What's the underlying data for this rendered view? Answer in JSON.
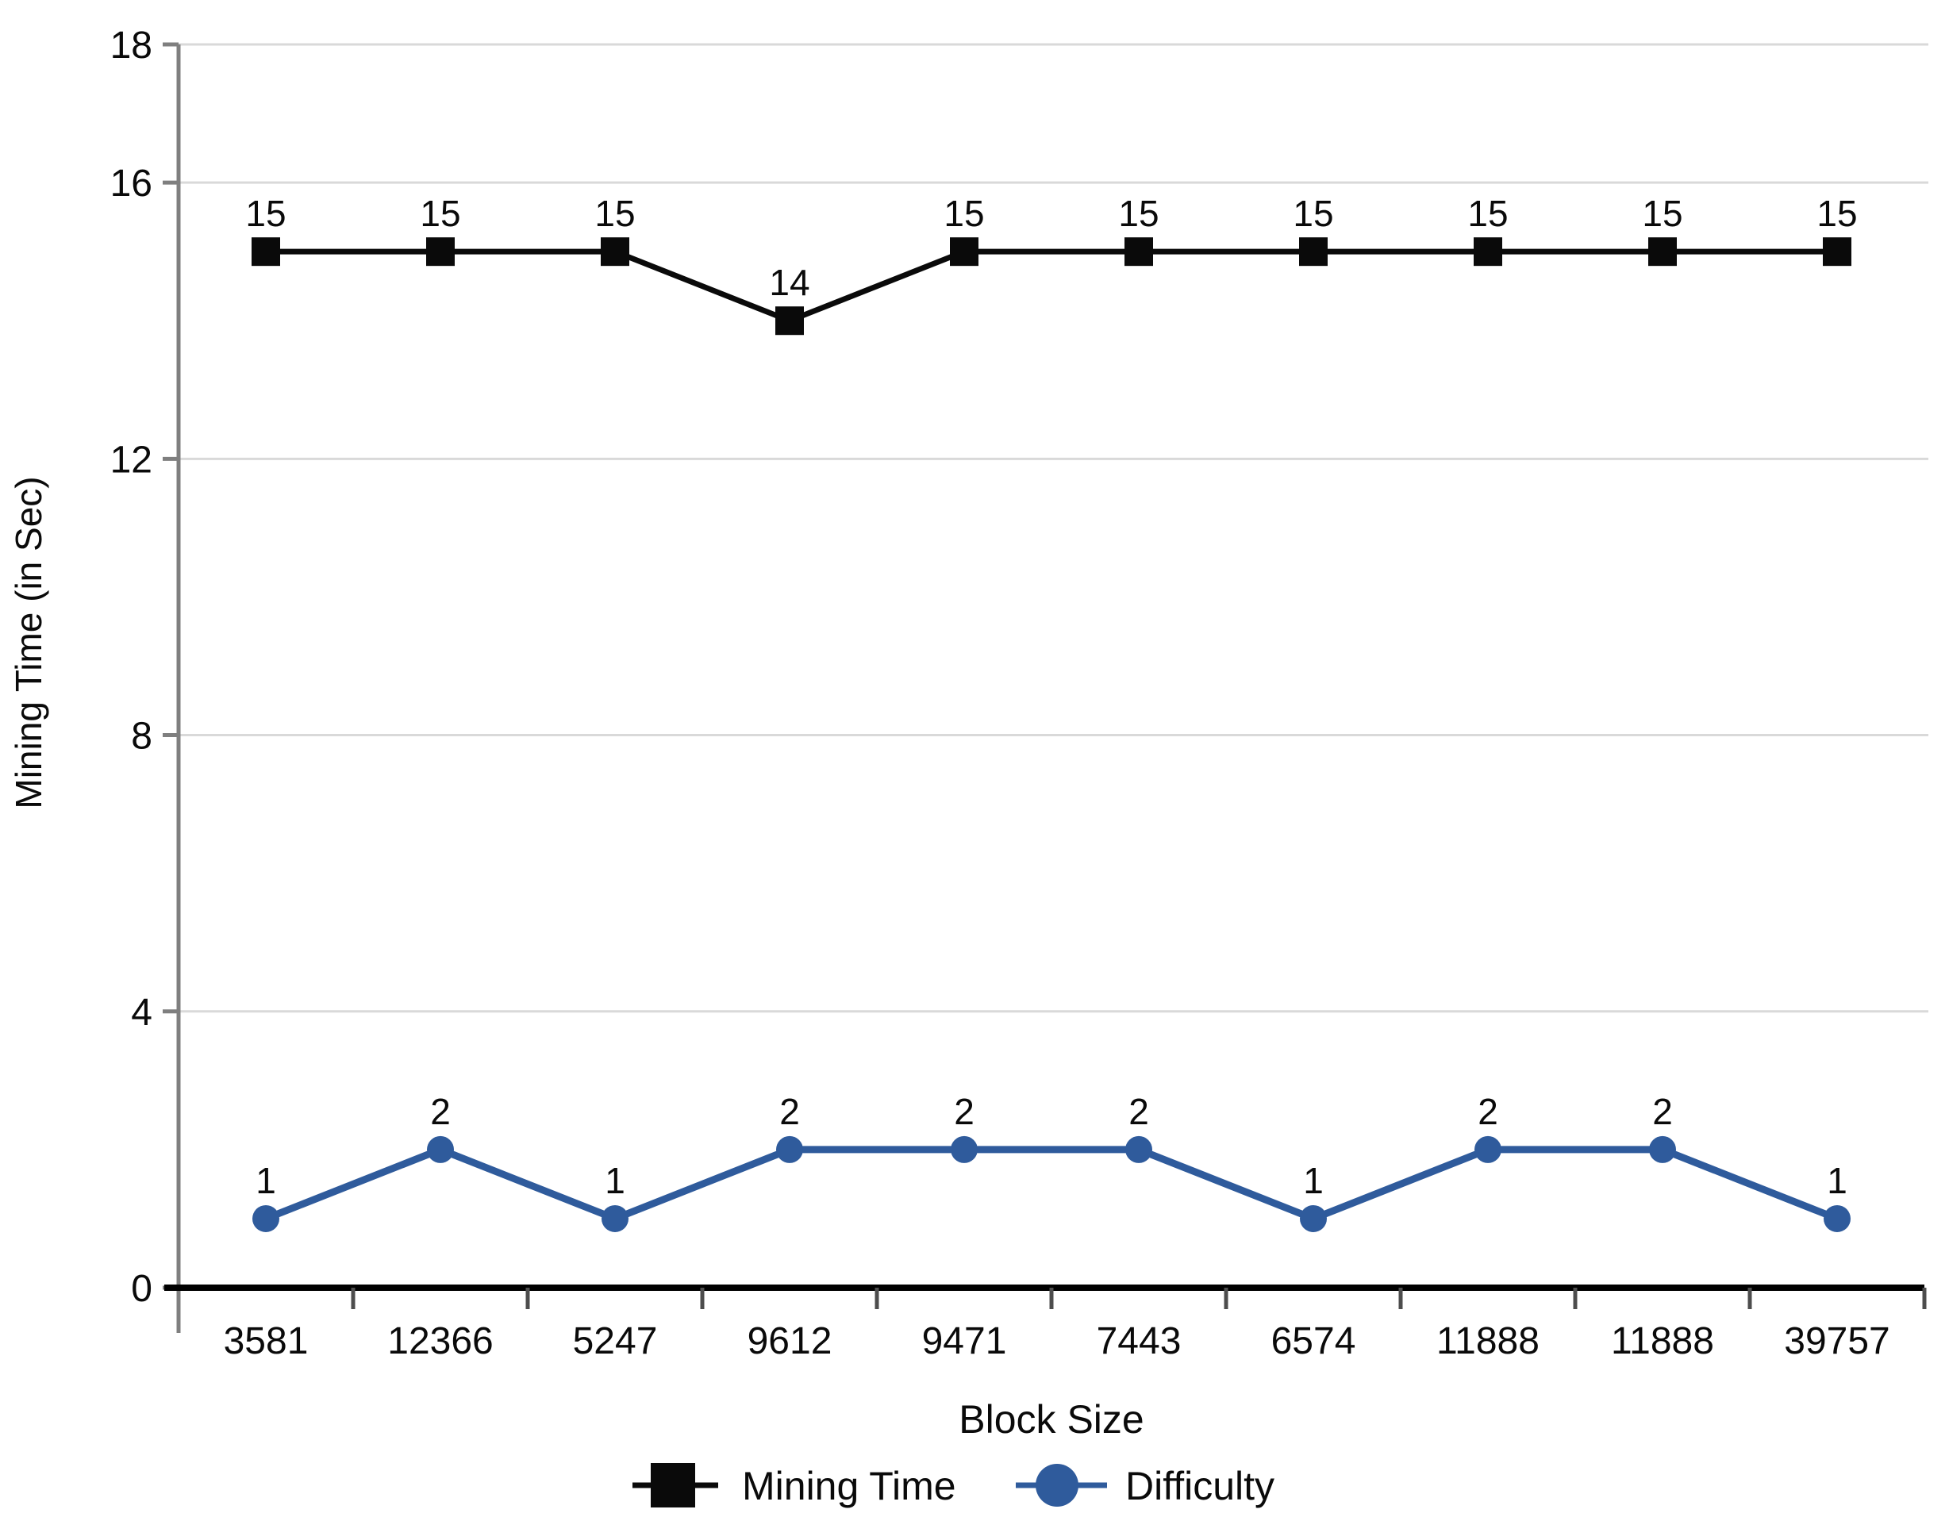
{
  "chart_data": {
    "type": "line",
    "title": "",
    "xlabel": "Block Size",
    "ylabel": "Mining Time (in Sec)",
    "categories": [
      "3581",
      "12366",
      "5247",
      "9612",
      "9471",
      "7443",
      "6574",
      "11888",
      "11888",
      "39757"
    ],
    "series": [
      {
        "name": "Mining Time",
        "marker": "square",
        "color": "#0a0a0a",
        "label_color": "#0a0a0a",
        "values": [
          15,
          15,
          15,
          14,
          15,
          15,
          15,
          15,
          15,
          15
        ]
      },
      {
        "name": "Difficulty",
        "marker": "circle",
        "color": "#2F5B9C",
        "label_color": "#3765B0",
        "values": [
          1,
          2,
          1,
          2,
          2,
          2,
          1,
          2,
          2,
          1
        ]
      }
    ],
    "ylim": [
      0,
      18
    ],
    "yticks": [
      0,
      4,
      8,
      12,
      16,
      18
    ],
    "grid": true,
    "data_labels": true,
    "legend_position": "bottom",
    "colors": {
      "background": "#ffffff",
      "gridline": "#d9d9d9",
      "y_axis": "#7f7f7f",
      "x_axis": "#000000",
      "x_tick": "#4d4d4d",
      "text": "#0a0a0a"
    }
  }
}
